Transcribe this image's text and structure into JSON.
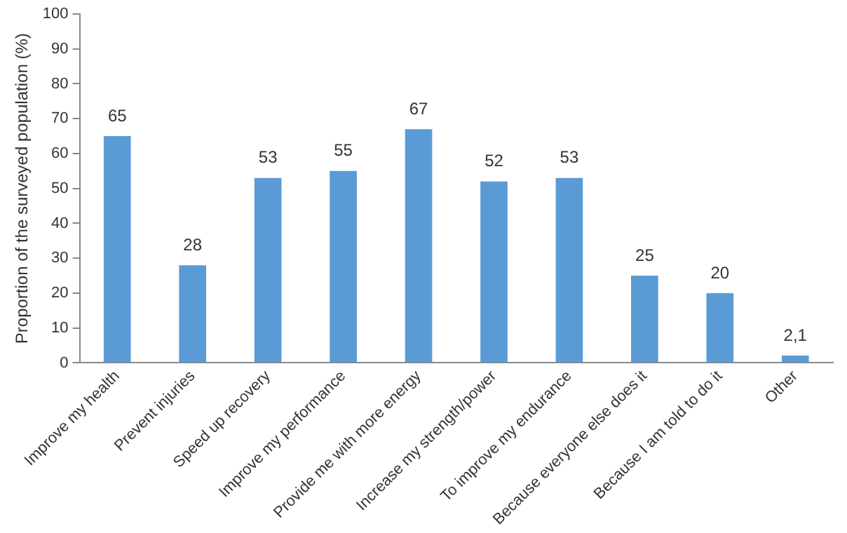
{
  "chart_data": {
    "type": "bar",
    "ylabel": "Proportion of the surveyed population (%)",
    "categories": [
      "Improve my health",
      "Prevent injuries",
      "Speed up recovery",
      "Improve my performance",
      "Provide me with more energy",
      "Increase my strength/power",
      "To improve my endurance",
      "Because everyone else does it",
      "Because I am told to do it",
      "Other"
    ],
    "values": [
      65,
      28,
      53,
      55,
      67,
      52,
      53,
      25,
      20,
      2.1
    ],
    "value_labels": [
      "65",
      "28",
      "53",
      "55",
      "67",
      "52",
      "53",
      "25",
      "20",
      "2,1"
    ],
    "color": "#5b9bd5",
    "ylim": [
      0,
      100
    ],
    "yticks": [
      0,
      10,
      20,
      30,
      40,
      50,
      60,
      70,
      80,
      90,
      100
    ],
    "grid": false,
    "legend": false
  }
}
